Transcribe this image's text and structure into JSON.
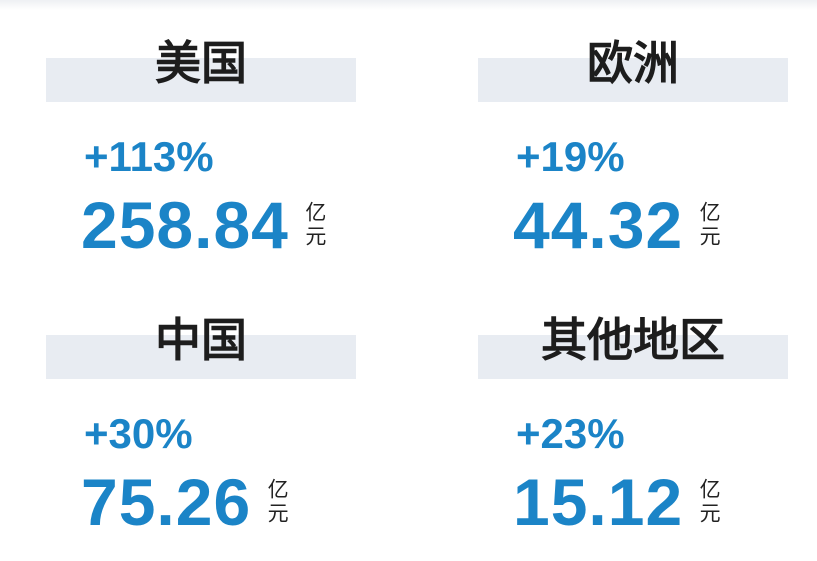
{
  "cards": [
    {
      "name": "美国",
      "growth": "+113%",
      "value": "258.84",
      "unit": "亿元"
    },
    {
      "name": "欧洲",
      "growth": "+19%",
      "value": "44.32",
      "unit": "亿元"
    },
    {
      "name": "中国",
      "growth": "+30%",
      "value": "75.26",
      "unit": "亿元"
    },
    {
      "name": "其他地区",
      "growth": "+23%",
      "value": "15.12",
      "unit": "亿元"
    }
  ]
}
